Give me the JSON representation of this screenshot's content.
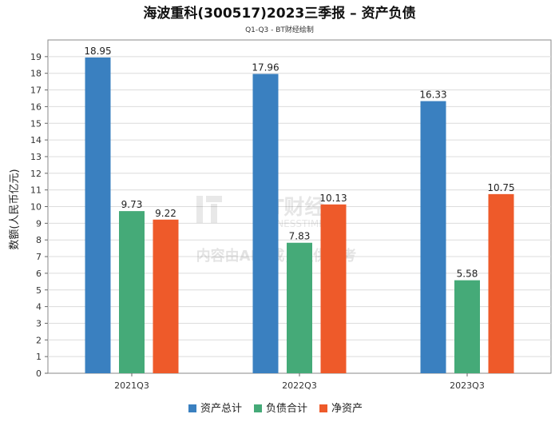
{
  "chart_data": {
    "type": "bar",
    "title": "海波重科(300517)2023三季报 – 资产负债",
    "subtitle": "Q1-Q3 - BT财经绘制",
    "ylabel": "数额(人民币亿元)",
    "xlabel": "",
    "categories": [
      "2021Q3",
      "2022Q3",
      "2023Q3"
    ],
    "ylim": [
      0,
      20
    ],
    "yticks": [
      0,
      1,
      2,
      3,
      4,
      5,
      6,
      7,
      8,
      9,
      10,
      11,
      12,
      13,
      14,
      15,
      16,
      17,
      18,
      19
    ],
    "grid": true,
    "legend_position": "bottom",
    "series": [
      {
        "name": "资产总计",
        "color": "#3a80c0",
        "values": [
          18.95,
          17.96,
          16.33
        ],
        "labels": [
          "18.95",
          "17.96",
          "16.33"
        ]
      },
      {
        "name": "负债合计",
        "color": "#45aa78",
        "values": [
          9.73,
          7.83,
          5.58
        ],
        "labels": [
          "9.73",
          "7.83",
          "5.58"
        ]
      },
      {
        "name": "净资产",
        "color": "#ee5a2a",
        "values": [
          9.22,
          10.13,
          10.75
        ],
        "labels": [
          "9.22",
          "10.13",
          "10.75"
        ]
      }
    ]
  },
  "watermark": {
    "logo_text": "BT财经",
    "logo_sub": "BUSINESSTIMES",
    "notice": "内容由AI生成，仅供参考"
  }
}
